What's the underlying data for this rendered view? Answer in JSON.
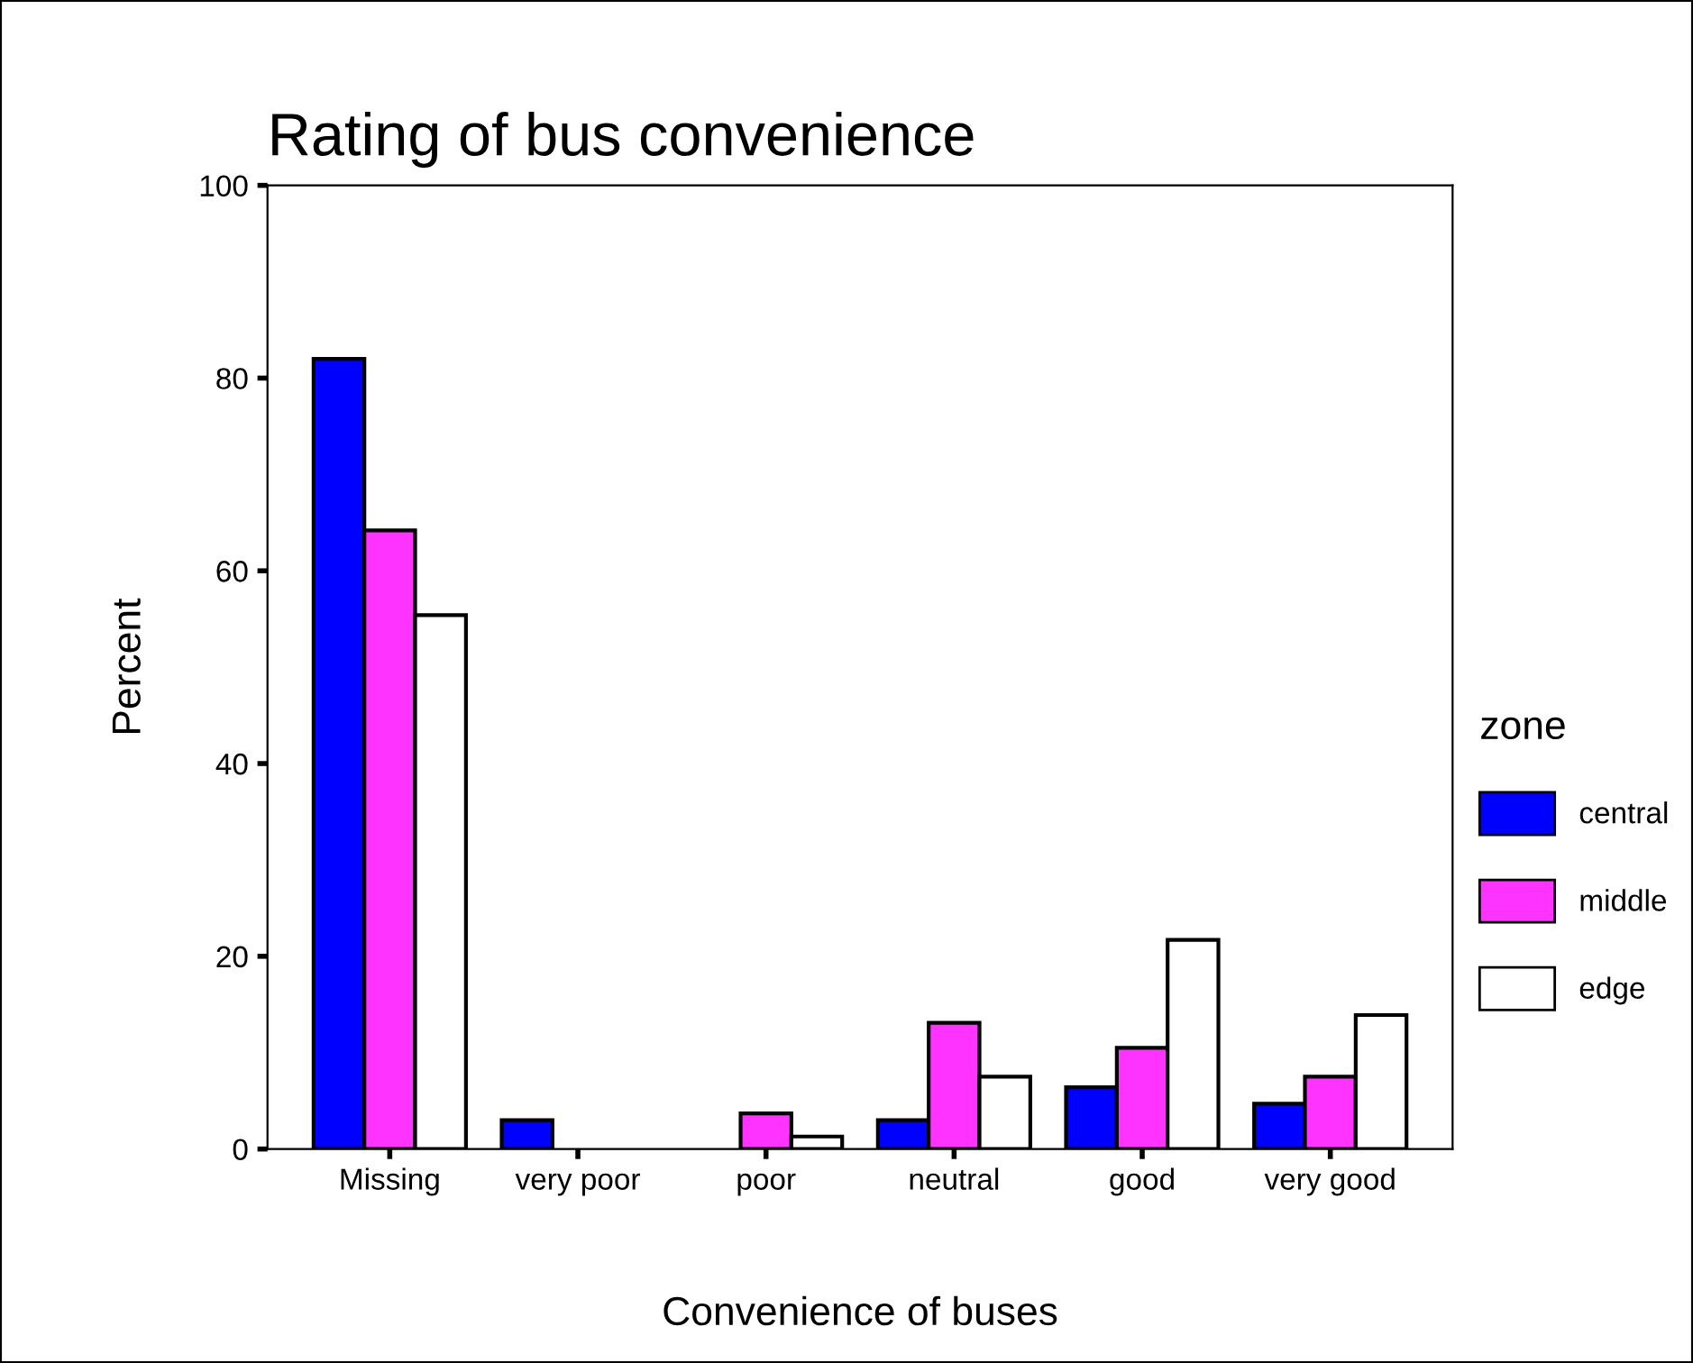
{
  "chart_data": {
    "type": "bar",
    "title": "Rating of bus convenience",
    "xlabel": "Convenience of buses",
    "ylabel": "Percent",
    "legend_title": "zone",
    "legend": "right",
    "grid": false,
    "categories": [
      "Missing",
      "very poor",
      "poor",
      "neutral",
      "good",
      "very good"
    ],
    "series": [
      {
        "name": "central",
        "color": "#0000ff",
        "values": [
          82,
          3.0,
          0,
          3.0,
          6.4,
          4.7
        ]
      },
      {
        "name": "middle",
        "color": "#ff33ff",
        "values": [
          64.2,
          0,
          3.7,
          13.1,
          10.5,
          7.5
        ]
      },
      {
        "name": "edge",
        "color": "#ffffff",
        "values": [
          55.4,
          0,
          1.3,
          7.5,
          21.7,
          13.9
        ]
      }
    ],
    "ylim": [
      0,
      100
    ],
    "yticks": [
      0,
      20,
      40,
      60,
      80,
      100
    ]
  }
}
